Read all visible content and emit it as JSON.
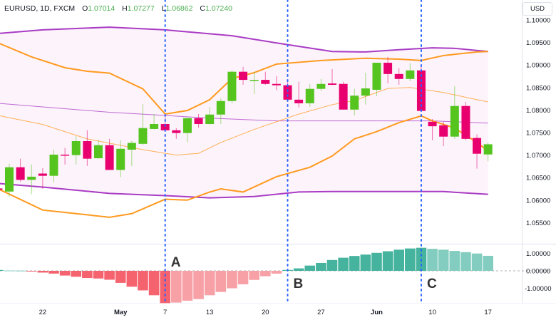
{
  "legend": {
    "symbol": "EURUSD, 1D, FXCM",
    "open_key": "O",
    "open": "1.07014",
    "high_key": "H",
    "high": "1.07277",
    "low_key": "L",
    "low": "1.06862",
    "close_key": "C",
    "close": "1.07240"
  },
  "price_axis": {
    "currency": "USD",
    "ticks": [
      "1.10000",
      "1.09500",
      "1.09000",
      "1.08500",
      "1.08000",
      "1.07500",
      "1.07000",
      "1.06500",
      "1.06000",
      "1.05500"
    ]
  },
  "oscillator_axis": {
    "ticks": [
      "1.00000",
      "0.00000",
      "-1.00000"
    ]
  },
  "time_axis": {
    "ticks": [
      {
        "label": "22",
        "date": "Apr22"
      },
      {
        "label": "May",
        "date": "May1"
      },
      {
        "label": "7",
        "date": "May7"
      },
      {
        "label": "13",
        "date": "May13"
      },
      {
        "label": "20",
        "date": "May20"
      },
      {
        "label": "27",
        "date": "May27"
      },
      {
        "label": "Jun",
        "date": "Jun3"
      },
      {
        "label": "10",
        "date": "Jun10"
      },
      {
        "label": "17",
        "date": "Jun17"
      }
    ]
  },
  "markers": [
    {
      "label": "A",
      "date": "May7"
    },
    {
      "label": "B",
      "date": "May22"
    },
    {
      "label": "C",
      "date": "Jun7"
    }
  ],
  "colors": {
    "up": "#55c41f",
    "down": "#e8006f",
    "band_outer": "#a93cc4",
    "band_inner": "#ff9a1f",
    "band_fill": "#fdf3fb",
    "marker_line": "#2962ff",
    "osc_neg_strong": "#f5636f",
    "osc_neg_weak": "#f7a0a6",
    "osc_pos_strong": "#45b39d",
    "osc_pos_weak": "#82cdbf"
  },
  "chart_data": {
    "type": "candlestick",
    "ylim": [
      1.05,
      1.102
    ],
    "candles": [
      {
        "date": "Apr16",
        "o": 1.0626,
        "h": 1.0628,
        "l": 1.062,
        "c": 1.0623
      },
      {
        "date": "Apr17",
        "o": 1.0619,
        "h": 1.0681,
        "l": 1.0607,
        "c": 1.0673
      },
      {
        "date": "Apr18",
        "o": 1.0673,
        "h": 1.0692,
        "l": 1.0641,
        "c": 1.0645
      },
      {
        "date": "Apr19",
        "o": 1.0645,
        "h": 1.0679,
        "l": 1.0613,
        "c": 1.0652
      },
      {
        "date": "Apr22",
        "o": 1.0659,
        "h": 1.0671,
        "l": 1.0625,
        "c": 1.0654
      },
      {
        "date": "Apr23",
        "o": 1.0654,
        "h": 1.0712,
        "l": 1.064,
        "c": 1.0701
      },
      {
        "date": "Apr24",
        "o": 1.0701,
        "h": 1.0716,
        "l": 1.0679,
        "c": 1.07
      },
      {
        "date": "Apr25",
        "o": 1.07,
        "h": 1.0742,
        "l": 1.0679,
        "c": 1.0731
      },
      {
        "date": "Apr26",
        "o": 1.0731,
        "h": 1.0755,
        "l": 1.0676,
        "c": 1.0692
      },
      {
        "date": "Apr29",
        "o": 1.0693,
        "h": 1.0734,
        "l": 1.0692,
        "c": 1.0722
      },
      {
        "date": "Apr30",
        "o": 1.0722,
        "h": 1.0736,
        "l": 1.0667,
        "c": 1.0667
      },
      {
        "date": "May1",
        "o": 1.0667,
        "h": 1.0733,
        "l": 1.0651,
        "c": 1.0714
      },
      {
        "date": "May2",
        "o": 1.0712,
        "h": 1.0731,
        "l": 1.0676,
        "c": 1.0727
      },
      {
        "date": "May3",
        "o": 1.0725,
        "h": 1.0813,
        "l": 1.0723,
        "c": 1.076
      },
      {
        "date": "May6",
        "o": 1.0758,
        "h": 1.0791,
        "l": 1.0757,
        "c": 1.0769
      },
      {
        "date": "May7",
        "o": 1.0769,
        "h": 1.0788,
        "l": 1.0755,
        "c": 1.0755
      },
      {
        "date": "May8",
        "o": 1.0755,
        "h": 1.076,
        "l": 1.0736,
        "c": 1.0749
      },
      {
        "date": "May9",
        "o": 1.0749,
        "h": 1.0783,
        "l": 1.0728,
        "c": 1.0782
      },
      {
        "date": "May10",
        "o": 1.0782,
        "h": 1.0791,
        "l": 1.0761,
        "c": 1.0769
      },
      {
        "date": "May13",
        "o": 1.0769,
        "h": 1.0807,
        "l": 1.0768,
        "c": 1.079
      },
      {
        "date": "May14",
        "o": 1.079,
        "h": 1.0826,
        "l": 1.0769,
        "c": 1.082
      },
      {
        "date": "May15",
        "o": 1.082,
        "h": 1.0888,
        "l": 1.0815,
        "c": 1.0885
      },
      {
        "date": "May16",
        "o": 1.0885,
        "h": 1.0896,
        "l": 1.0856,
        "c": 1.0867
      },
      {
        "date": "May17",
        "o": 1.0866,
        "h": 1.0885,
        "l": 1.0836,
        "c": 1.0867
      },
      {
        "date": "May20",
        "o": 1.0867,
        "h": 1.0885,
        "l": 1.0856,
        "c": 1.0858
      },
      {
        "date": "May21",
        "o": 1.0858,
        "h": 1.0875,
        "l": 1.0844,
        "c": 1.0855
      },
      {
        "date": "May22",
        "o": 1.0855,
        "h": 1.0866,
        "l": 1.082,
        "c": 1.0823
      },
      {
        "date": "May23",
        "o": 1.0823,
        "h": 1.0863,
        "l": 1.0806,
        "c": 1.0815
      },
      {
        "date": "May24",
        "o": 1.0815,
        "h": 1.0858,
        "l": 1.0807,
        "c": 1.0847
      },
      {
        "date": "May27",
        "o": 1.0847,
        "h": 1.0869,
        "l": 1.0842,
        "c": 1.0858
      },
      {
        "date": "May28",
        "o": 1.0859,
        "h": 1.0891,
        "l": 1.0855,
        "c": 1.0856
      },
      {
        "date": "May29",
        "o": 1.0858,
        "h": 1.0863,
        "l": 1.0801,
        "c": 1.0801
      },
      {
        "date": "May30",
        "o": 1.0801,
        "h": 1.0847,
        "l": 1.0788,
        "c": 1.0832
      },
      {
        "date": "May31",
        "o": 1.0832,
        "h": 1.0883,
        "l": 1.0812,
        "c": 1.0848
      },
      {
        "date": "Jun3",
        "o": 1.0845,
        "h": 1.0905,
        "l": 1.0831,
        "c": 1.0905
      },
      {
        "date": "Jun4",
        "o": 1.0905,
        "h": 1.0918,
        "l": 1.0859,
        "c": 1.088
      },
      {
        "date": "Jun5",
        "o": 1.088,
        "h": 1.0893,
        "l": 1.0856,
        "c": 1.0869
      },
      {
        "date": "Jun6",
        "o": 1.0869,
        "h": 1.0904,
        "l": 1.0864,
        "c": 1.0888
      },
      {
        "date": "Jun7",
        "o": 1.0888,
        "h": 1.0899,
        "l": 1.0798,
        "c": 1.0798
      },
      {
        "date": "Jun10",
        "o": 1.0774,
        "h": 1.078,
        "l": 1.0733,
        "c": 1.0764
      },
      {
        "date": "Jun11",
        "o": 1.0766,
        "h": 1.0774,
        "l": 1.072,
        "c": 1.0741
      },
      {
        "date": "Jun12",
        "o": 1.0741,
        "h": 1.0853,
        "l": 1.0736,
        "c": 1.0809
      },
      {
        "date": "Jun13",
        "o": 1.0809,
        "h": 1.0818,
        "l": 1.0733,
        "c": 1.0736
      },
      {
        "date": "Jun14",
        "o": 1.0738,
        "h": 1.0746,
        "l": 1.067,
        "c": 1.0703
      },
      {
        "date": "Jun17",
        "o": 1.07014,
        "h": 1.07277,
        "l": 1.06862,
        "c": 1.0724
      }
    ],
    "bands": [
      {
        "role": "outer-upper",
        "style": "outer",
        "points": [
          [
            "Apr16",
            1.097
          ],
          [
            "Apr22",
            1.0978
          ],
          [
            "Apr30",
            1.0984
          ],
          [
            "May7",
            1.0978
          ],
          [
            "May15",
            1.0965
          ],
          [
            "May21",
            1.0949
          ],
          [
            "May28",
            1.093
          ],
          [
            "May31",
            1.0929
          ],
          [
            "Jun5",
            1.0934
          ],
          [
            "Jun10",
            1.0938
          ],
          [
            "Jun12",
            1.0937
          ],
          [
            "Jun17",
            1.093
          ]
        ]
      },
      {
        "role": "outer-lower",
        "style": "outer",
        "points": [
          [
            "Apr16",
            1.0637
          ],
          [
            "Apr22",
            1.0629
          ],
          [
            "Apr30",
            1.0615
          ],
          [
            "May7",
            1.061
          ],
          [
            "May13",
            1.0605
          ],
          [
            "May17",
            1.0608
          ],
          [
            "May23",
            1.0618
          ],
          [
            "May28",
            1.0619
          ],
          [
            "Jun5",
            1.0619
          ],
          [
            "Jun11",
            1.0619
          ],
          [
            "Jun17",
            1.0613
          ]
        ]
      },
      {
        "role": "outer-basis",
        "style": "outer-thin",
        "points": [
          [
            "Apr16",
            1.0815
          ],
          [
            "Apr22",
            1.0807
          ],
          [
            "Apr30",
            1.0795
          ],
          [
            "May7",
            1.0788
          ],
          [
            "May13",
            1.0782
          ],
          [
            "May21",
            1.0776
          ],
          [
            "May30",
            1.0776
          ],
          [
            "Jun10",
            1.0776
          ],
          [
            "Jun17",
            1.0771
          ]
        ]
      },
      {
        "role": "inner-upper",
        "style": "inner",
        "points": [
          [
            "Apr16",
            1.0949
          ],
          [
            "Apr19",
            1.0918
          ],
          [
            "Apr24",
            1.0894
          ],
          [
            "Apr26",
            1.0886
          ],
          [
            "Apr30",
            1.0882
          ],
          [
            "May3",
            1.0847
          ],
          [
            "May7",
            1.0791
          ],
          [
            "May9",
            1.0799
          ],
          [
            "May13",
            1.0823
          ],
          [
            "May15",
            1.087
          ],
          [
            "May17",
            1.0883
          ],
          [
            "May21",
            1.0902
          ],
          [
            "May27",
            1.091
          ],
          [
            "May31",
            1.0915
          ],
          [
            "Jun5",
            1.0913
          ],
          [
            "Jun7",
            1.091
          ],
          [
            "Jun11",
            1.0921
          ],
          [
            "Jun14",
            1.0929
          ],
          [
            "Jun17",
            1.093
          ]
        ]
      },
      {
        "role": "inner-lower",
        "style": "inner",
        "points": [
          [
            "Apr16",
            1.0625
          ],
          [
            "Apr22",
            1.0578
          ],
          [
            "Apr25",
            1.057
          ],
          [
            "Apr30",
            1.0562
          ],
          [
            "May2",
            1.057
          ],
          [
            "May7",
            1.0602
          ],
          [
            "May9",
            1.06
          ],
          [
            "May13",
            1.0618
          ],
          [
            "May14",
            1.0625
          ],
          [
            "May16",
            1.0618
          ],
          [
            "May21",
            1.0652
          ],
          [
            "May24",
            1.0673
          ],
          [
            "May28",
            1.0698
          ],
          [
            "May30",
            1.0736
          ],
          [
            "Jun3",
            1.0752
          ],
          [
            "Jun5",
            1.0772
          ],
          [
            "Jun7",
            1.0787
          ],
          [
            "Jun10",
            1.0776
          ],
          [
            "Jun12",
            1.076
          ],
          [
            "Jun14",
            1.0728
          ],
          [
            "Jun17",
            1.0709
          ]
        ]
      },
      {
        "role": "inner-basis",
        "style": "inner-thin",
        "points": [
          [
            "Apr16",
            1.0788
          ],
          [
            "Apr22",
            1.0768
          ],
          [
            "Apr26",
            1.0736
          ],
          [
            "May3",
            1.0712
          ],
          [
            "May8",
            1.07
          ],
          [
            "May10",
            1.0704
          ],
          [
            "May14",
            1.0728
          ],
          [
            "May17",
            1.0757
          ],
          [
            "May23",
            1.0791
          ],
          [
            "May28",
            1.0812
          ],
          [
            "May30",
            1.0821
          ],
          [
            "Jun4",
            1.0848
          ],
          [
            "Jun6",
            1.085
          ],
          [
            "Jun11",
            1.0839
          ],
          [
            "Jun14",
            1.0823
          ],
          [
            "Jun17",
            1.0818
          ]
        ]
      }
    ],
    "oscillator": {
      "type": "histogram",
      "ylim": [
        -1.9,
        1.4
      ],
      "values": [
        0.05,
        0.02,
        0.01,
        -0.02,
        -0.1,
        -0.16,
        -0.27,
        -0.34,
        -0.41,
        -0.44,
        -0.51,
        -0.69,
        -0.91,
        -1.12,
        -1.4,
        -1.85,
        -1.82,
        -1.71,
        -1.62,
        -1.4,
        -1.21,
        -1.0,
        -0.77,
        -0.52,
        -0.31,
        -0.16,
        0.05,
        0.14,
        0.3,
        0.45,
        0.62,
        0.75,
        0.85,
        0.93,
        1.03,
        1.12,
        1.21,
        1.28,
        1.32,
        1.26,
        1.21,
        1.14,
        1.07,
        0.99,
        0.86
      ]
    }
  }
}
